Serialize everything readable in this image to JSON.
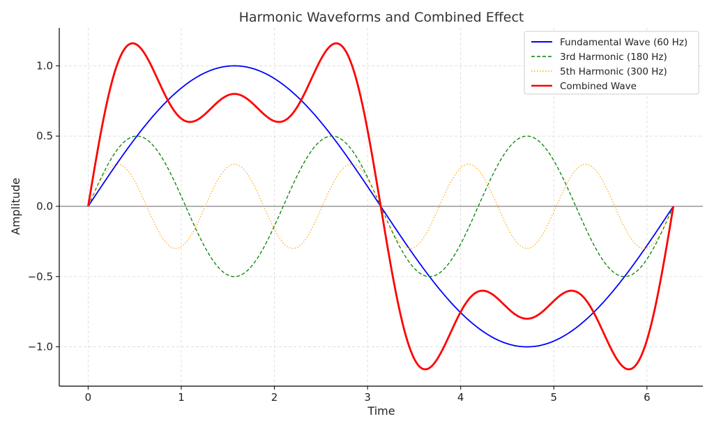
{
  "chart_data": {
    "type": "line",
    "title": "Harmonic Waveforms and Combined Effect",
    "xlabel": "Time",
    "ylabel": "Amplitude",
    "xlim": [
      -0.31,
      6.6
    ],
    "ylim": [
      -1.28,
      1.27
    ],
    "xticks": [
      0,
      1,
      2,
      3,
      4,
      5,
      6
    ],
    "xtick_labels": [
      "0",
      "1",
      "2",
      "3",
      "4",
      "5",
      "6"
    ],
    "yticks": [
      -1.0,
      -0.5,
      0.0,
      0.5,
      1.0
    ],
    "ytick_labels": [
      "−1.0",
      "−0.5",
      "0.0",
      "0.5",
      "1.0"
    ],
    "grid": true,
    "zero_line": true,
    "legend_position": "top-right",
    "x_range": [
      0,
      6.2832
    ],
    "series": [
      {
        "name": "Fundamental Wave (60 Hz)",
        "formula": "sin(t)",
        "amplitude": 1.0,
        "harmonic": 1,
        "color": "#0000ff",
        "style": "solid"
      },
      {
        "name": "3rd Harmonic (180 Hz)",
        "formula": "0.5*sin(3t)",
        "amplitude": 0.5,
        "harmonic": 3,
        "color": "#008000",
        "style": "dashed"
      },
      {
        "name": "5th Harmonic (300 Hz)",
        "formula": "0.3*sin(5t)",
        "amplitude": 0.3,
        "harmonic": 5,
        "color": "#ffa500",
        "style": "dotted"
      },
      {
        "name": "Combined Wave",
        "formula": "sin(t)+0.5*sin(3t)+0.3*sin(5t)",
        "color": "#ff0000",
        "style": "solid"
      }
    ]
  }
}
